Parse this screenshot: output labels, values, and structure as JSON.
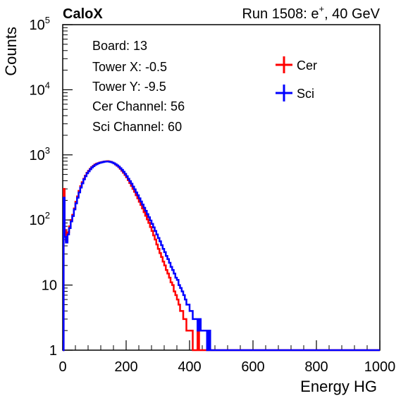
{
  "header": {
    "brand": "CaloX",
    "run_info_prefix": "Run 1508: e",
    "run_info_sup": "+",
    "run_info_suffix": ", 40 GeV"
  },
  "info_box": {
    "lines": [
      "Board: 13",
      "Tower X: -0.5",
      "Tower Y: -9.5",
      "Cer Channel: 56",
      "Sci Channel: 60"
    ]
  },
  "chart_data": {
    "type": "histogram",
    "xlabel": "Energy HG",
    "ylabel": "Counts",
    "xlim": [
      0,
      1000
    ],
    "ylim": [
      1,
      100000
    ],
    "y_scale": "log",
    "grid": false,
    "legend_position": "top-right",
    "x_ticks": [
      0,
      200,
      400,
      600,
      800,
      1000
    ],
    "y_ticks": [
      {
        "value": 1,
        "base": "1",
        "exp": ""
      },
      {
        "value": 10,
        "base": "10",
        "exp": ""
      },
      {
        "value": 100,
        "base": "10",
        "exp": "2"
      },
      {
        "value": 1000,
        "base": "10",
        "exp": "3"
      },
      {
        "value": 10000,
        "base": "10",
        "exp": "4"
      },
      {
        "value": 100000,
        "base": "10",
        "exp": "5"
      }
    ],
    "series": [
      {
        "name": "Cer",
        "color": "#ff0000",
        "points": [
          [
            0,
            1
          ],
          [
            3,
            300
          ],
          [
            6,
            70
          ],
          [
            10,
            48
          ],
          [
            15,
            65
          ],
          [
            20,
            80
          ],
          [
            25,
            100
          ],
          [
            30,
            120
          ],
          [
            35,
            150
          ],
          [
            40,
            190
          ],
          [
            45,
            230
          ],
          [
            50,
            280
          ],
          [
            55,
            330
          ],
          [
            60,
            380
          ],
          [
            65,
            430
          ],
          [
            70,
            480
          ],
          [
            75,
            530
          ],
          [
            80,
            570
          ],
          [
            85,
            610
          ],
          [
            90,
            650
          ],
          [
            95,
            680
          ],
          [
            100,
            710
          ],
          [
            105,
            730
          ],
          [
            110,
            745
          ],
          [
            115,
            760
          ],
          [
            120,
            770
          ],
          [
            125,
            780
          ],
          [
            130,
            790
          ],
          [
            135,
            795
          ],
          [
            140,
            800
          ],
          [
            145,
            790
          ],
          [
            150,
            780
          ],
          [
            155,
            760
          ],
          [
            160,
            740
          ],
          [
            165,
            710
          ],
          [
            170,
            680
          ],
          [
            175,
            650
          ],
          [
            180,
            610
          ],
          [
            185,
            570
          ],
          [
            190,
            530
          ],
          [
            195,
            490
          ],
          [
            200,
            450
          ],
          [
            205,
            410
          ],
          [
            210,
            370
          ],
          [
            215,
            335
          ],
          [
            220,
            300
          ],
          [
            225,
            270
          ],
          [
            230,
            240
          ],
          [
            235,
            215
          ],
          [
            240,
            190
          ],
          [
            245,
            170
          ],
          [
            250,
            150
          ],
          [
            255,
            132
          ],
          [
            260,
            116
          ],
          [
            265,
            102
          ],
          [
            270,
            90
          ],
          [
            275,
            78
          ],
          [
            280,
            68
          ],
          [
            285,
            58
          ],
          [
            290,
            50
          ],
          [
            295,
            42
          ],
          [
            300,
            36
          ],
          [
            305,
            31
          ],
          [
            310,
            27
          ],
          [
            315,
            23
          ],
          [
            320,
            20
          ],
          [
            325,
            17
          ],
          [
            330,
            15
          ],
          [
            335,
            13
          ],
          [
            340,
            11
          ],
          [
            345,
            10
          ],
          [
            350,
            8
          ],
          [
            355,
            7
          ],
          [
            360,
            6
          ],
          [
            365,
            5
          ],
          [
            370,
            4
          ],
          [
            375,
            4
          ],
          [
            380,
            3
          ],
          [
            385,
            3
          ],
          [
            390,
            2
          ],
          [
            395,
            2
          ],
          [
            400,
            2
          ],
          [
            405,
            2
          ],
          [
            410,
            1
          ],
          [
            420,
            1
          ],
          [
            425,
            2
          ],
          [
            430,
            1
          ],
          [
            440,
            1
          ],
          [
            450,
            1
          ],
          [
            460,
            1
          ],
          [
            1000,
            1
          ]
        ]
      },
      {
        "name": "Sci",
        "color": "#0000ff",
        "points": [
          [
            0,
            1
          ],
          [
            3,
            220
          ],
          [
            6,
            55
          ],
          [
            10,
            45
          ],
          [
            15,
            60
          ],
          [
            20,
            75
          ],
          [
            25,
            95
          ],
          [
            30,
            115
          ],
          [
            35,
            145
          ],
          [
            40,
            180
          ],
          [
            45,
            220
          ],
          [
            50,
            265
          ],
          [
            55,
            315
          ],
          [
            60,
            365
          ],
          [
            65,
            420
          ],
          [
            70,
            470
          ],
          [
            75,
            520
          ],
          [
            80,
            560
          ],
          [
            85,
            600
          ],
          [
            90,
            640
          ],
          [
            95,
            670
          ],
          [
            100,
            700
          ],
          [
            105,
            720
          ],
          [
            110,
            740
          ],
          [
            115,
            755
          ],
          [
            120,
            765
          ],
          [
            125,
            775
          ],
          [
            130,
            785
          ],
          [
            135,
            790
          ],
          [
            140,
            790
          ],
          [
            145,
            785
          ],
          [
            150,
            775
          ],
          [
            155,
            760
          ],
          [
            160,
            740
          ],
          [
            165,
            715
          ],
          [
            170,
            690
          ],
          [
            175,
            660
          ],
          [
            180,
            625
          ],
          [
            185,
            590
          ],
          [
            190,
            550
          ],
          [
            195,
            510
          ],
          [
            200,
            470
          ],
          [
            205,
            430
          ],
          [
            210,
            395
          ],
          [
            215,
            360
          ],
          [
            220,
            325
          ],
          [
            225,
            295
          ],
          [
            230,
            265
          ],
          [
            235,
            240
          ],
          [
            240,
            215
          ],
          [
            245,
            192
          ],
          [
            250,
            172
          ],
          [
            255,
            154
          ],
          [
            260,
            138
          ],
          [
            265,
            123
          ],
          [
            270,
            110
          ],
          [
            275,
            98
          ],
          [
            280,
            87
          ],
          [
            285,
            77
          ],
          [
            290,
            68
          ],
          [
            295,
            60
          ],
          [
            300,
            53
          ],
          [
            305,
            47
          ],
          [
            310,
            41
          ],
          [
            315,
            36
          ],
          [
            320,
            32
          ],
          [
            325,
            28
          ],
          [
            330,
            25
          ],
          [
            335,
            22
          ],
          [
            340,
            19
          ],
          [
            345,
            17
          ],
          [
            350,
            15
          ],
          [
            355,
            13
          ],
          [
            360,
            12
          ],
          [
            365,
            10
          ],
          [
            370,
            9
          ],
          [
            375,
            8
          ],
          [
            380,
            7
          ],
          [
            385,
            6
          ],
          [
            390,
            5
          ],
          [
            395,
            5
          ],
          [
            400,
            4
          ],
          [
            405,
            4
          ],
          [
            410,
            3
          ],
          [
            415,
            3
          ],
          [
            420,
            3
          ],
          [
            425,
            2
          ],
          [
            430,
            3
          ],
          [
            435,
            2
          ],
          [
            440,
            2
          ],
          [
            445,
            2
          ],
          [
            450,
            2
          ],
          [
            455,
            1
          ],
          [
            460,
            2
          ],
          [
            465,
            1
          ],
          [
            470,
            1
          ],
          [
            480,
            1
          ],
          [
            490,
            1
          ],
          [
            500,
            1
          ],
          [
            520,
            1
          ],
          [
            540,
            1
          ],
          [
            560,
            1
          ],
          [
            600,
            1
          ],
          [
            750,
            1
          ],
          [
            1000,
            1
          ]
        ]
      }
    ]
  }
}
